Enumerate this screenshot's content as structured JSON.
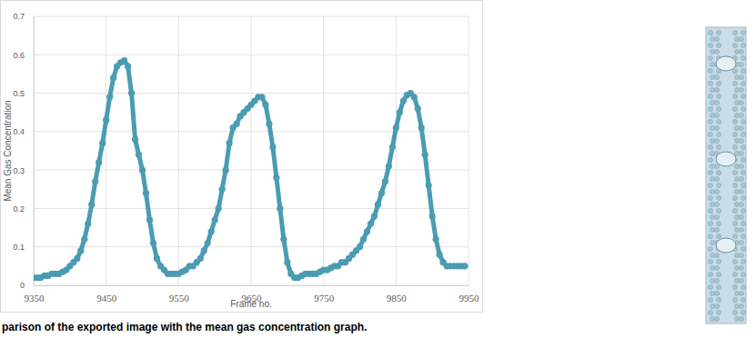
{
  "chart_data": {
    "type": "line",
    "xlabel": "Frame no.",
    "ylabel": "Mean Gas Concentration",
    "x": [
      9350,
      9355,
      9360,
      9365,
      9370,
      9375,
      9380,
      9385,
      9390,
      9395,
      9400,
      9405,
      9410,
      9415,
      9420,
      9425,
      9430,
      9435,
      9440,
      9445,
      9450,
      9455,
      9460,
      9465,
      9470,
      9475,
      9480,
      9485,
      9490,
      9495,
      9500,
      9505,
      9510,
      9515,
      9520,
      9525,
      9530,
      9535,
      9540,
      9545,
      9550,
      9555,
      9560,
      9565,
      9570,
      9575,
      9580,
      9585,
      9590,
      9595,
      9600,
      9605,
      9610,
      9615,
      9620,
      9625,
      9630,
      9635,
      9640,
      9645,
      9650,
      9655,
      9660,
      9665,
      9670,
      9675,
      9680,
      9685,
      9690,
      9695,
      9700,
      9705,
      9710,
      9715,
      9720,
      9725,
      9730,
      9735,
      9740,
      9745,
      9750,
      9755,
      9760,
      9765,
      9770,
      9775,
      9780,
      9785,
      9790,
      9795,
      9800,
      9805,
      9810,
      9815,
      9820,
      9825,
      9830,
      9835,
      9840,
      9845,
      9850,
      9855,
      9860,
      9865,
      9870,
      9875,
      9880,
      9885,
      9890,
      9895,
      9900,
      9905,
      9910,
      9915,
      9920,
      9925,
      9930,
      9935,
      9940,
      9945
    ],
    "values": [
      0.02,
      0.02,
      0.02,
      0.025,
      0.025,
      0.03,
      0.03,
      0.03,
      0.035,
      0.04,
      0.05,
      0.06,
      0.07,
      0.09,
      0.12,
      0.16,
      0.21,
      0.27,
      0.32,
      0.37,
      0.43,
      0.49,
      0.54,
      0.57,
      0.58,
      0.585,
      0.57,
      0.5,
      0.38,
      0.34,
      0.3,
      0.24,
      0.17,
      0.11,
      0.07,
      0.05,
      0.04,
      0.03,
      0.03,
      0.03,
      0.03,
      0.035,
      0.04,
      0.05,
      0.05,
      0.06,
      0.07,
      0.09,
      0.11,
      0.14,
      0.17,
      0.2,
      0.25,
      0.3,
      0.37,
      0.41,
      0.42,
      0.44,
      0.45,
      0.46,
      0.47,
      0.48,
      0.49,
      0.49,
      0.47,
      0.42,
      0.36,
      0.28,
      0.2,
      0.12,
      0.06,
      0.03,
      0.02,
      0.02,
      0.025,
      0.03,
      0.03,
      0.03,
      0.03,
      0.035,
      0.04,
      0.04,
      0.045,
      0.05,
      0.05,
      0.06,
      0.06,
      0.07,
      0.08,
      0.09,
      0.1,
      0.12,
      0.14,
      0.16,
      0.18,
      0.21,
      0.24,
      0.27,
      0.31,
      0.36,
      0.41,
      0.45,
      0.48,
      0.495,
      0.5,
      0.49,
      0.46,
      0.41,
      0.34,
      0.26,
      0.18,
      0.12,
      0.08,
      0.06,
      0.05,
      0.05,
      0.05,
      0.05,
      0.05,
      0.05
    ],
    "color": "#4a9cb2",
    "marker": "circle",
    "line_style": "solid",
    "xlim": [
      9350,
      9950
    ],
    "xticks": [
      9350,
      9450,
      9550,
      9650,
      9750,
      9850,
      9950
    ],
    "ylim": [
      0,
      0.7
    ],
    "yticks": [
      0,
      0.1,
      0.2,
      0.3,
      0.4,
      0.5,
      0.6,
      0.7
    ],
    "grid": true
  },
  "caption": "parison of the exported image with the mean gas concentration graph."
}
